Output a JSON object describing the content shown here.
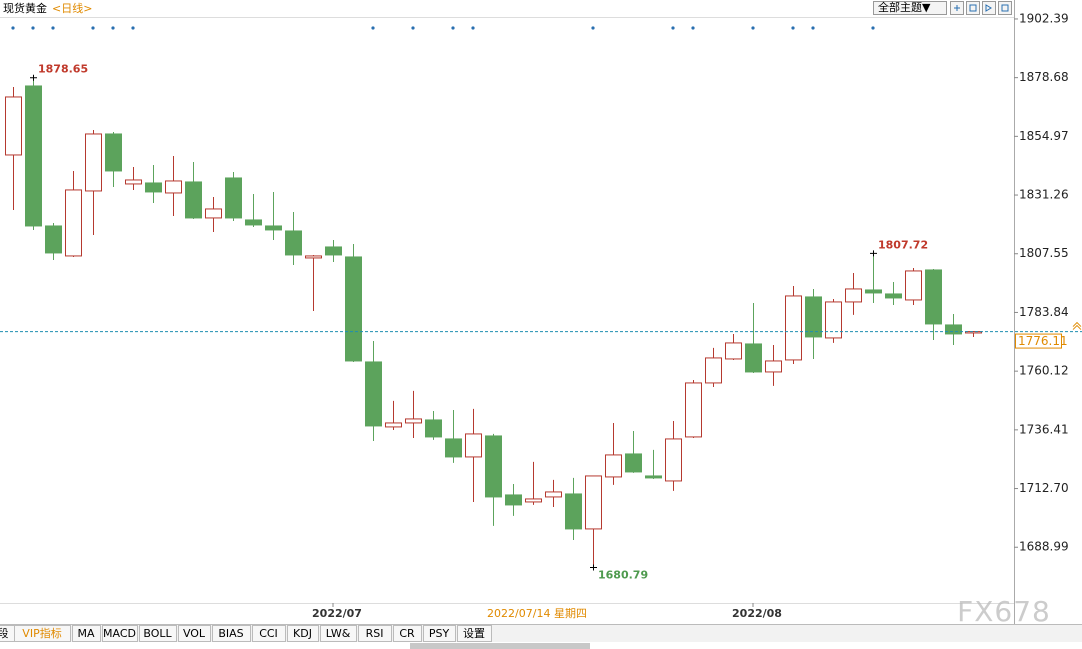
{
  "header": {
    "title": "现货黄金",
    "period": "<日线>",
    "theme_button": "全部主题▼"
  },
  "crosshair_date": "2022/07/14 星期四",
  "tabs": [
    "段",
    "VIP指标",
    "MA",
    "MACD",
    "BOLL",
    "VOL",
    "BIAS",
    "CCI",
    "KDJ",
    "LW&",
    "RSI",
    "CR",
    "PSY",
    "设置"
  ],
  "watermark": "FX678",
  "chart_data": {
    "type": "candlestick",
    "categories": [
      null,
      null,
      null,
      null,
      null,
      null,
      null,
      null,
      null,
      null,
      null,
      null,
      null,
      null,
      null,
      null,
      "2022/07",
      null,
      null,
      null,
      null,
      null,
      null,
      null,
      null,
      null,
      null,
      null,
      null,
      null,
      null,
      null,
      null,
      null,
      null,
      null,
      null,
      "2022/08",
      null,
      null,
      null,
      null,
      null,
      null,
      null,
      null,
      null,
      null,
      null
    ],
    "open": [
      1847.45,
      1875.32,
      1818.77,
      1806.66,
      1832.91,
      1855.93,
      1835.74,
      1836.14,
      1832.1,
      1836.55,
      1822.01,
      1838.16,
      1821.2,
      1818.77,
      1816.75,
      1805.85,
      1810.29,
      1806.25,
      1763.84,
      1737.59,
      1739.2,
      1740.41,
      1732.74,
      1725.47,
      1733.95,
      1710.12,
      1707.29,
      1709.31,
      1710.52,
      1696.39,
      1717.39,
      1726.68,
      1717.79,
      1715.77,
      1733.55,
      1755.36,
      1765.05,
      1771.11,
      1759.8,
      1764.65,
      1790.1,
      1773.54,
      1788.08,
      1792.92,
      1791.31,
      1788.88,
      1801.0,
      1778.79,
      1775.55
    ],
    "high": [
      1874.92,
      1878.65,
      1819.99,
      1840.99,
      1857.55,
      1856.74,
      1842.61,
      1843.41,
      1847.05,
      1844.62,
      1830.49,
      1840.59,
      1831.7,
      1832.51,
      1824.43,
      1807.06,
      1813.12,
      1811.5,
      1772.32,
      1748.09,
      1752.13,
      1744.05,
      1744.45,
      1744.86,
      1734.76,
      1714.56,
      1723.45,
      1716.18,
      1716.99,
      1717.79,
      1739.2,
      1735.97,
      1728.3,
      1740.01,
      1756.57,
      1769.5,
      1775.15,
      1787.67,
      1770.71,
      1794.54,
      1793.33,
      1789.29,
      1799.79,
      1807.72,
      1796.15,
      1801.81,
      1801.41,
      1783.23,
      1776.36
    ],
    "low": [
      1825.24,
      1817.16,
      1805.04,
      1806.25,
      1815.14,
      1834.53,
      1833.32,
      1828.06,
      1822.81,
      1821.6,
      1816.35,
      1820.79,
      1818.37,
      1813.12,
      1803.02,
      1784.44,
      1804.23,
      1763.84,
      1731.93,
      1736.37,
      1733.14,
      1732.34,
      1723.05,
      1707.29,
      1697.6,
      1701.64,
      1706.08,
      1705.27,
      1691.94,
      1680.79,
      1714.16,
      1719.01,
      1716.58,
      1711.74,
      1733.14,
      1753.74,
      1764.65,
      1759.4,
      1754.15,
      1763.03,
      1765.05,
      1771.52,
      1782.83,
      1787.67,
      1786.86,
      1786.86,
      1772.73,
      1770.71,
      1773.94
    ],
    "close": [
      1870.88,
      1818.77,
      1807.87,
      1833.32,
      1855.93,
      1840.99,
      1837.35,
      1832.51,
      1836.95,
      1822.01,
      1825.64,
      1822.01,
      1819.18,
      1817.16,
      1807.06,
      1806.66,
      1807.06,
      1764.24,
      1737.99,
      1739.2,
      1740.82,
      1733.55,
      1725.47,
      1734.76,
      1709.31,
      1706.08,
      1708.5,
      1711.33,
      1696.39,
      1717.79,
      1726.28,
      1719.41,
      1716.99,
      1732.74,
      1755.36,
      1765.46,
      1771.52,
      1759.8,
      1764.24,
      1790.5,
      1773.94,
      1788.08,
      1793.33,
      1791.71,
      1789.69,
      1800.6,
      1779.19,
      1775.15,
      1776.11
    ],
    "up_color": "#b5392f",
    "down_color": "#5ca35c",
    "high_label_color": "#c0392b",
    "low_label_color": "#4e9a4e",
    "price_line_color": "#1f8fb0",
    "ylim": [
      1659.6,
      1905.2
    ],
    "yticks": [
      1902.39,
      1878.68,
      1854.97,
      1831.26,
      1807.55,
      1783.84,
      1760.12,
      1736.41,
      {
        "value": 1712.7,
        "label": "1712.70"
      },
      1688.99
    ]
  }
}
